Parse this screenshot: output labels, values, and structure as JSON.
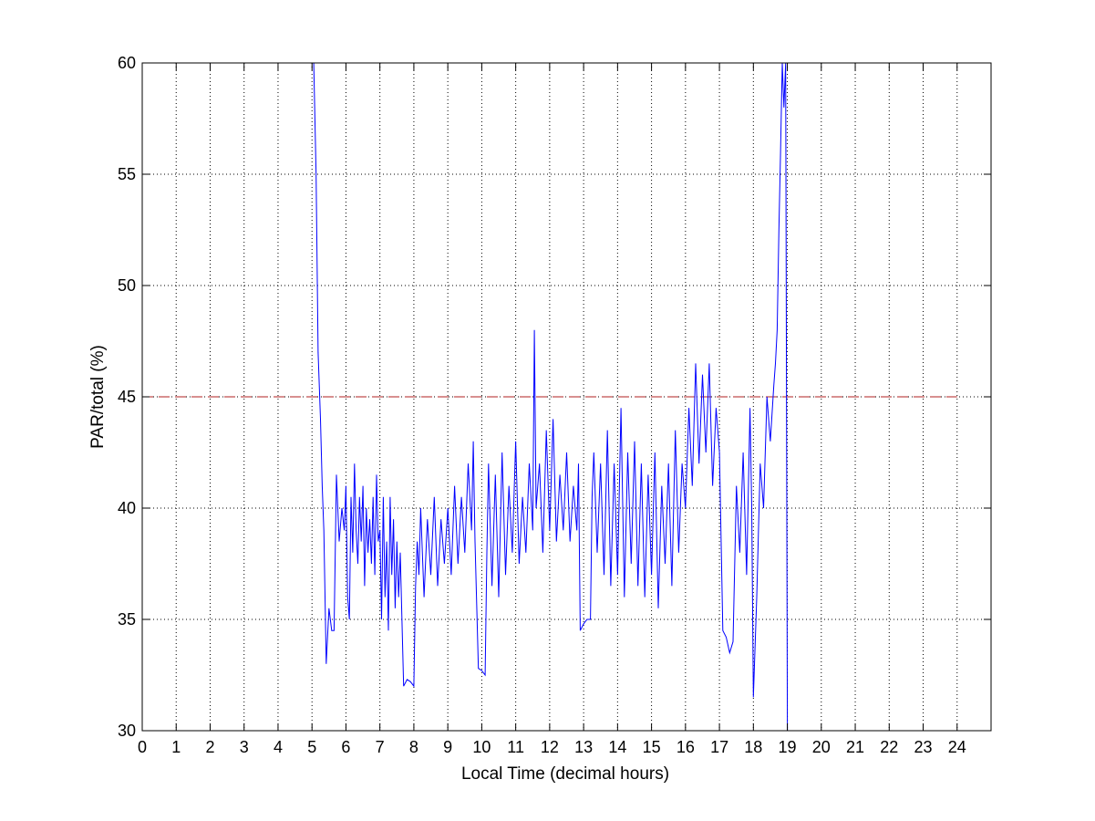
{
  "chart_data": {
    "type": "line",
    "title": "",
    "xlabel": "Local Time (decimal hours)",
    "ylabel": "PAR/total (%)",
    "xlim": [
      0,
      25
    ],
    "ylim": [
      30,
      60
    ],
    "x_ticks": [
      0,
      1,
      2,
      3,
      4,
      5,
      6,
      7,
      8,
      9,
      10,
      11,
      12,
      13,
      14,
      15,
      16,
      17,
      18,
      19,
      20,
      21,
      22,
      23,
      24
    ],
    "y_ticks": [
      30,
      35,
      40,
      45,
      50,
      55,
      60
    ],
    "grid": true,
    "grid_style": "dotted",
    "line_color": "#0000ff",
    "reference_line": {
      "y": 45,
      "x_range": [
        0,
        24
      ],
      "color": "#b22222",
      "style": "dashed"
    },
    "series": [
      {
        "x": [
          5.05,
          5.12,
          5.18,
          5.25,
          5.3,
          5.35,
          5.42,
          5.5,
          5.58,
          5.65,
          5.72,
          5.8,
          5.88,
          5.95,
          6.0,
          6.05,
          6.1,
          6.15,
          6.2,
          6.25,
          6.3,
          6.35,
          6.4,
          6.45,
          6.5,
          6.55,
          6.6,
          6.65,
          6.7,
          6.75,
          6.8,
          6.85,
          6.9,
          6.95,
          7.0,
          7.05,
          7.1,
          7.15,
          7.2,
          7.25,
          7.3,
          7.35,
          7.4,
          7.45,
          7.5,
          7.55,
          7.6,
          7.7,
          7.8,
          7.9,
          8.0,
          8.05,
          8.1,
          8.15,
          8.2,
          8.3,
          8.4,
          8.5,
          8.6,
          8.7,
          8.8,
          8.9,
          9.0,
          9.1,
          9.2,
          9.3,
          9.4,
          9.5,
          9.6,
          9.7,
          9.75,
          9.8,
          9.9,
          10.0,
          10.1,
          10.15,
          10.2,
          10.3,
          10.4,
          10.5,
          10.6,
          10.7,
          10.8,
          10.9,
          11.0,
          11.1,
          11.2,
          11.3,
          11.4,
          11.5,
          11.55,
          11.6,
          11.7,
          11.8,
          11.9,
          12.0,
          12.1,
          12.2,
          12.3,
          12.4,
          12.5,
          12.6,
          12.7,
          12.8,
          12.85,
          12.9,
          13.0,
          13.1,
          13.2,
          13.25,
          13.3,
          13.4,
          13.5,
          13.6,
          13.7,
          13.8,
          13.9,
          14.0,
          14.1,
          14.2,
          14.3,
          14.4,
          14.5,
          14.6,
          14.7,
          14.8,
          14.9,
          15.0,
          15.1,
          15.2,
          15.3,
          15.4,
          15.5,
          15.6,
          15.7,
          15.8,
          15.9,
          16.0,
          16.1,
          16.2,
          16.3,
          16.4,
          16.5,
          16.6,
          16.7,
          16.8,
          16.9,
          17.0,
          17.1,
          17.2,
          17.3,
          17.4,
          17.5,
          17.6,
          17.7,
          17.8,
          17.9,
          17.95,
          18.0,
          18.1,
          18.2,
          18.3,
          18.4,
          18.5,
          18.6,
          18.65,
          18.7,
          18.75,
          18.8,
          18.85,
          18.9,
          18.95,
          19.0
        ],
        "values": [
          60.0,
          55.0,
          47.0,
          44.0,
          41.0,
          39.0,
          33.0,
          35.5,
          34.5,
          34.5,
          41.5,
          38.5,
          40.0,
          39.0,
          41.0,
          36.0,
          35.0,
          40.5,
          38.0,
          42.0,
          39.0,
          37.5,
          40.5,
          38.5,
          41.0,
          36.5,
          40.0,
          38.0,
          39.5,
          37.5,
          40.5,
          37.0,
          41.5,
          38.5,
          39.0,
          35.0,
          40.5,
          36.0,
          38.5,
          34.5,
          40.5,
          37.0,
          39.5,
          35.5,
          38.5,
          36.0,
          38.0,
          32.0,
          32.3,
          32.2,
          32.0,
          36.5,
          38.5,
          37.0,
          40.0,
          36.0,
          39.5,
          37.0,
          40.5,
          36.5,
          39.5,
          37.5,
          40.0,
          37.0,
          41.0,
          37.5,
          40.5,
          38.0,
          42.0,
          39.0,
          43.0,
          38.5,
          32.8,
          32.7,
          32.5,
          38.0,
          42.0,
          36.5,
          41.5,
          36.0,
          42.5,
          37.0,
          41.0,
          38.0,
          43.0,
          37.5,
          40.5,
          38.0,
          42.0,
          39.0,
          48.0,
          40.0,
          42.0,
          38.0,
          43.5,
          39.0,
          44.0,
          38.5,
          41.5,
          39.0,
          42.5,
          38.5,
          41.0,
          39.0,
          42.0,
          34.5,
          34.8,
          35.0,
          35.0,
          40.5,
          42.5,
          38.0,
          42.0,
          37.0,
          43.5,
          36.5,
          42.0,
          37.0,
          44.5,
          36.0,
          42.5,
          37.5,
          43.0,
          36.5,
          42.0,
          36.0,
          41.5,
          37.0,
          42.5,
          35.5,
          41.0,
          37.5,
          42.0,
          36.5,
          43.5,
          38.0,
          42.0,
          40.0,
          44.5,
          41.0,
          46.5,
          42.0,
          46.0,
          42.5,
          46.5,
          41.0,
          44.5,
          42.5,
          34.5,
          34.2,
          33.5,
          34.0,
          41.0,
          38.0,
          42.5,
          37.0,
          44.5,
          40.0,
          31.5,
          36.0,
          42.0,
          40.0,
          45.0,
          43.0,
          45.5,
          46.5,
          48.0,
          52.5,
          56.0,
          60.0,
          58.0,
          60.0,
          30.0
        ]
      }
    ]
  }
}
